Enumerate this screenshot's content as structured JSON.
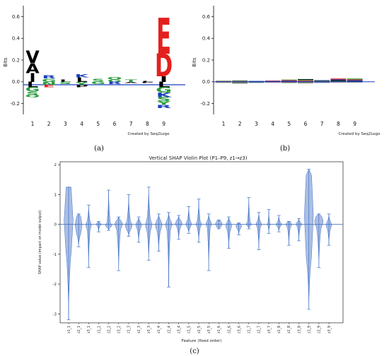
{
  "chart_data": [
    {
      "id": "a",
      "type": "sequence-logo",
      "panel_label": "(a)",
      "ylabel": "Bits",
      "watermark": "Created by Seq2Logo",
      "ylim": [
        -0.3,
        0.7
      ],
      "yticks": [
        "0.6",
        "0.4",
        "0.2",
        "0.0",
        "-0.2"
      ],
      "positions": [
        "1",
        "2",
        "3",
        "4",
        "5",
        "6",
        "7",
        "8",
        "9"
      ],
      "positive_letters": [
        [
          {
            "letter": "I",
            "bits": 0.08,
            "color": "#000000"
          },
          {
            "letter": "A",
            "bits": 0.09,
            "color": "#000000"
          },
          {
            "letter": "V",
            "bits": 0.12,
            "color": "#000000"
          }
        ],
        [
          {
            "letter": "G",
            "bits": 0.03,
            "color": "#2a9d3e"
          },
          {
            "letter": "R",
            "bits": 0.03,
            "color": "#1b3fbf"
          }
        ],
        [
          {
            "letter": "L",
            "bits": 0.02,
            "color": "#000000"
          }
        ],
        [
          {
            "letter": "L",
            "bits": 0.04,
            "color": "#000000"
          },
          {
            "letter": "K",
            "bits": 0.03,
            "color": "#1b3fbf"
          }
        ],
        [
          {
            "letter": "S",
            "bits": 0.03,
            "color": "#2a9d3e"
          }
        ],
        [
          {
            "letter": "G",
            "bits": 0.02,
            "color": "#2a9d3e"
          },
          {
            "letter": "Q",
            "bits": 0.02,
            "color": "#2a9d3e"
          }
        ],
        [
          {
            "letter": "T",
            "bits": 0.02,
            "color": "#2a9d3e"
          }
        ],
        [
          {
            "letter": "L",
            "bits": 0.01,
            "color": "#000000"
          }
        ],
        [
          {
            "letter": "I",
            "bits": 0.05,
            "color": "#000000"
          },
          {
            "letter": "D",
            "bits": 0.21,
            "color": "#e4201d"
          },
          {
            "letter": "E",
            "bits": 0.33,
            "color": "#e4201d"
          }
        ]
      ],
      "negative_letters": [
        [
          {
            "letter": "L",
            "bits": 0.05,
            "color": "#000000"
          },
          {
            "letter": "G",
            "bits": 0.04,
            "color": "#2a9d3e"
          },
          {
            "letter": "S",
            "bits": 0.03,
            "color": "#2a9d3e"
          },
          {
            "letter": "Q",
            "bits": 0.02,
            "color": "#2a9d3e"
          }
        ],
        [
          {
            "letter": "N",
            "bits": 0.03,
            "color": "#2a9d3e"
          },
          {
            "letter": "E",
            "bits": 0.02,
            "color": "#e4201d"
          }
        ],
        [
          {
            "letter": "S",
            "bits": 0.02,
            "color": "#2a9d3e"
          }
        ],
        [
          {
            "letter": "Y",
            "bits": 0.03,
            "color": "#2a9d3e"
          },
          {
            "letter": "P",
            "bits": 0.02,
            "color": "#000000"
          }
        ],
        [
          {
            "letter": "G",
            "bits": 0.02,
            "color": "#2a9d3e"
          }
        ],
        [
          {
            "letter": "R",
            "bits": 0.02,
            "color": "#1b3fbf"
          }
        ],
        [
          {
            "letter": "A",
            "bits": 0.01,
            "color": "#000000"
          }
        ],
        [
          {
            "letter": "P",
            "bits": 0.01,
            "color": "#000000"
          }
        ],
        [
          {
            "letter": "L",
            "bits": 0.05,
            "color": "#000000"
          },
          {
            "letter": "G",
            "bits": 0.05,
            "color": "#2a9d3e"
          },
          {
            "letter": "K",
            "bits": 0.04,
            "color": "#1b3fbf"
          },
          {
            "letter": "S",
            "bits": 0.04,
            "color": "#2a9d3e"
          },
          {
            "letter": "Y",
            "bits": 0.03,
            "color": "#2a9d3e"
          },
          {
            "letter": "R",
            "bits": 0.03,
            "color": "#1b3fbf"
          }
        ]
      ]
    },
    {
      "id": "b",
      "type": "sequence-logo",
      "panel_label": "(b)",
      "ylabel": "Bits",
      "watermark": "Created by Seq2Logo",
      "ylim": [
        -0.3,
        0.7
      ],
      "yticks": [
        "0.6",
        "0.4",
        "0.2",
        "0.0",
        "-0.2"
      ],
      "positions": [
        "1",
        "2",
        "3",
        "4",
        "5",
        "6",
        "7",
        "8",
        "9"
      ],
      "positive_band": [
        0.01,
        0.012,
        0.008,
        0.012,
        0.02,
        0.025,
        0.015,
        0.03,
        0.03
      ],
      "negative_band": [
        0.01,
        0.015,
        0.01,
        0.008,
        0.012,
        0.012,
        0.01,
        0.006,
        0.006
      ],
      "band_colors": [
        "#000000",
        "#1b3fbf",
        "#e4201d",
        "#2a9d3e"
      ]
    },
    {
      "id": "c",
      "type": "violin",
      "panel_label": "(c)",
      "title": "Vertical SHAP Violin Plot (P1–P9, z1→z3)",
      "xlabel": "Feature (fixed order)",
      "ylabel": "SHAP value (impact on model output)",
      "ylim": [
        -3.3,
        2.1
      ],
      "yticks": [
        2,
        1,
        0,
        -1,
        -2,
        -3
      ],
      "violin_color": "#4472c4",
      "categories": [
        "z1_1",
        "z2_1",
        "z3_1",
        "z1_2",
        "z2_2",
        "z3_2",
        "z1_3",
        "z2_3",
        "z3_3",
        "z1_4",
        "z2_4",
        "z3_4",
        "z1_5",
        "z2_5",
        "z3_5",
        "z1_6",
        "z2_6",
        "z3_6",
        "z1_7",
        "z2_7",
        "z3_7",
        "z1_8",
        "z2_8",
        "z3_8",
        "z1_9",
        "z2_9",
        "z3_9"
      ],
      "max": [
        1.25,
        0.35,
        0.65,
        0.1,
        1.15,
        0.25,
        1.0,
        0.25,
        1.25,
        0.35,
        0.4,
        0.3,
        0.6,
        0.85,
        0.35,
        0.15,
        0.25,
        0.05,
        0.9,
        0.4,
        0.5,
        0.3,
        0.1,
        0.2,
        1.85,
        0.35,
        0.35
      ],
      "min": [
        -3.2,
        -0.75,
        -1.45,
        -0.25,
        -0.2,
        -1.55,
        -0.4,
        -0.6,
        -1.2,
        -0.9,
        -2.1,
        -0.5,
        -0.3,
        -0.6,
        -1.55,
        -0.15,
        -0.8,
        -0.35,
        -0.15,
        -0.85,
        -0.3,
        -0.25,
        -0.7,
        -0.55,
        -2.85,
        -1.45,
        -0.7
      ],
      "body_top": [
        1.25,
        0.3,
        0.1,
        0.06,
        0.03,
        0.15,
        0.12,
        0.1,
        0.15,
        0.15,
        0.14,
        0.15,
        0.12,
        0.1,
        0.12,
        0.12,
        0.1,
        0.03,
        0.06,
        0.1,
        0.02,
        0.07,
        0.08,
        0.08,
        1.8,
        0.3,
        0.1
      ],
      "body_bottom": [
        -1.0,
        -0.35,
        -0.15,
        -0.06,
        -0.1,
        -0.15,
        -0.2,
        -0.15,
        -0.2,
        -0.2,
        -0.15,
        -0.1,
        -0.1,
        -0.1,
        -0.1,
        -0.1,
        -0.2,
        -0.15,
        -0.05,
        -0.1,
        -0.02,
        -0.07,
        -0.1,
        -0.08,
        -1.2,
        -0.1,
        -0.15
      ],
      "width": [
        0.9,
        0.7,
        0.6,
        0.5,
        0.7,
        0.8,
        0.7,
        0.6,
        0.7,
        0.7,
        0.7,
        0.7,
        0.6,
        0.6,
        0.6,
        0.7,
        0.6,
        0.6,
        0.6,
        0.6,
        0.4,
        0.6,
        0.6,
        0.6,
        0.9,
        0.9,
        0.6
      ]
    }
  ]
}
